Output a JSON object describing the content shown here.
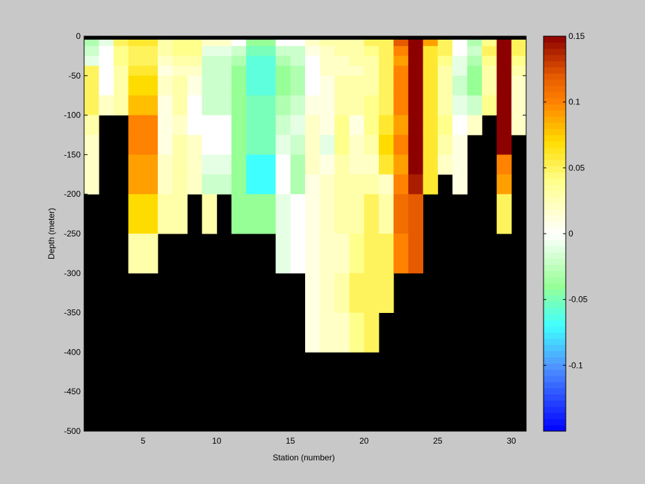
{
  "chart_data": {
    "type": "heatmap",
    "title": "",
    "xlabel": "Station (number)",
    "ylabel": "Depth (meter)",
    "xlim": [
      1,
      31
    ],
    "ylim": [
      -500,
      0
    ],
    "xticks": [
      5,
      10,
      15,
      20,
      25,
      30
    ],
    "yticks": [
      0,
      -50,
      -100,
      -150,
      -200,
      -250,
      -300,
      -350,
      -400,
      -450,
      -500
    ],
    "colorbar": {
      "range": [
        -0.15,
        0.15
      ],
      "ticks": [
        0.15,
        0.1,
        0.05,
        0,
        -0.05,
        -0.1
      ],
      "colormap": "jet-like (blue-cyan-green-white-yellow-orange-darkred)"
    },
    "background_mask_color": "#000000",
    "grid": false,
    "stations": [
      1,
      2,
      3,
      4,
      5,
      6,
      7,
      8,
      9,
      10,
      11,
      12,
      13,
      14,
      15,
      16,
      17,
      18,
      19,
      20,
      21,
      22,
      23,
      24,
      25,
      26,
      27,
      28,
      29,
      30
    ],
    "depth_bins_top_m": [
      0,
      -12.5,
      -25,
      -37.5,
      -50,
      -75,
      -100,
      -125,
      -150,
      -175,
      -200,
      -250,
      -300,
      -350,
      -400
    ],
    "depth_bins_bottom_m": [
      -12.5,
      -25,
      -37.5,
      -50,
      -75,
      -100,
      -125,
      -150,
      -175,
      -200,
      -250,
      -300,
      -350,
      -400,
      -500
    ],
    "values_by_station": [
      [
        -0.03,
        -0.02,
        -0.01,
        0.05,
        0.05,
        0.05,
        0.03,
        0.02,
        0.02,
        0.02,
        null,
        null,
        null,
        null,
        null
      ],
      [
        -0.01,
        0.0,
        0.0,
        0.0,
        0.0,
        0.02,
        null,
        null,
        null,
        null,
        null,
        null,
        null,
        null,
        null
      ],
      [
        0.05,
        0.04,
        0.04,
        0.03,
        0.03,
        0.03,
        null,
        null,
        null,
        null,
        null,
        null,
        null,
        null,
        null
      ],
      [
        0.06,
        0.05,
        0.05,
        0.06,
        0.07,
        0.08,
        0.1,
        0.1,
        0.09,
        0.09,
        0.07,
        0.03,
        null,
        null,
        null
      ],
      [
        0.06,
        0.05,
        0.05,
        0.06,
        0.07,
        0.08,
        0.1,
        0.1,
        0.09,
        0.09,
        0.07,
        0.03,
        null,
        null,
        null
      ],
      [
        0.03,
        0.03,
        0.02,
        0.01,
        0.02,
        0.01,
        0.01,
        0.01,
        0.02,
        0.02,
        0.03,
        null,
        null,
        null,
        null
      ],
      [
        0.04,
        0.04,
        0.03,
        0.02,
        0.03,
        0.03,
        0.02,
        0.03,
        0.03,
        0.03,
        0.03,
        null,
        null,
        null,
        null
      ],
      [
        0.04,
        0.04,
        0.03,
        0.02,
        0.01,
        0.0,
        0.0,
        0.02,
        0.02,
        0.02,
        null,
        null,
        null,
        null,
        null
      ],
      [
        0.02,
        -0.01,
        -0.02,
        -0.02,
        -0.02,
        -0.02,
        0.0,
        0.0,
        -0.01,
        -0.02,
        0.03,
        null,
        null,
        null,
        null
      ],
      [
        0.02,
        -0.01,
        -0.02,
        -0.02,
        -0.02,
        -0.02,
        0.0,
        0.0,
        -0.01,
        -0.02,
        null,
        null,
        null,
        null,
        null
      ],
      [
        0.0,
        -0.02,
        -0.03,
        -0.04,
        -0.04,
        -0.04,
        -0.04,
        -0.04,
        -0.04,
        -0.04,
        -0.04,
        null,
        null,
        null,
        null
      ],
      [
        -0.04,
        -0.05,
        -0.06,
        -0.06,
        -0.06,
        -0.05,
        -0.05,
        -0.05,
        -0.07,
        -0.07,
        -0.04,
        null,
        null,
        null,
        null
      ],
      [
        -0.04,
        -0.05,
        -0.06,
        -0.06,
        -0.06,
        -0.05,
        -0.05,
        -0.05,
        -0.07,
        -0.07,
        -0.04,
        null,
        null,
        null,
        null
      ],
      [
        0.0,
        -0.02,
        -0.03,
        -0.04,
        -0.04,
        -0.03,
        -0.02,
        -0.01,
        0.0,
        0.0,
        -0.01,
        -0.01,
        null,
        null,
        null
      ],
      [
        0.0,
        -0.02,
        -0.02,
        -0.03,
        -0.03,
        -0.02,
        -0.01,
        -0.02,
        -0.03,
        -0.03,
        0.0,
        0.0,
        null,
        null,
        null
      ],
      [
        0.02,
        0.01,
        0.0,
        0.0,
        0.0,
        0.01,
        0.02,
        0.02,
        0.02,
        0.01,
        0.01,
        0.01,
        0.01,
        0.01,
        null
      ],
      [
        0.03,
        0.02,
        0.02,
        0.02,
        0.01,
        0.01,
        0.01,
        -0.01,
        0.01,
        0.02,
        0.02,
        0.02,
        0.02,
        0.02,
        null
      ],
      [
        0.03,
        0.03,
        0.02,
        0.02,
        0.03,
        0.03,
        0.04,
        0.04,
        0.03,
        0.03,
        0.03,
        0.02,
        0.03,
        0.02,
        null
      ],
      [
        0.03,
        0.03,
        0.03,
        0.02,
        0.03,
        0.03,
        0.01,
        0.02,
        0.02,
        0.03,
        0.03,
        0.04,
        0.05,
        0.04,
        null
      ],
      [
        0.05,
        0.04,
        0.03,
        0.03,
        0.03,
        0.04,
        0.04,
        0.03,
        0.02,
        0.03,
        0.05,
        0.05,
        0.05,
        0.05,
        null
      ],
      [
        0.05,
        0.05,
        0.05,
        0.05,
        0.05,
        0.05,
        0.06,
        0.07,
        0.06,
        0.02,
        0.03,
        0.05,
        0.05,
        null,
        null
      ],
      [
        0.12,
        0.1,
        0.09,
        0.1,
        0.1,
        0.1,
        0.09,
        0.1,
        0.09,
        0.1,
        0.11,
        0.1,
        null,
        null,
        null
      ],
      [
        0.15,
        0.15,
        0.15,
        0.15,
        0.15,
        0.15,
        0.15,
        0.15,
        0.15,
        0.14,
        0.12,
        0.12,
        null,
        null,
        null
      ],
      [
        0.09,
        0.06,
        0.06,
        0.06,
        0.06,
        0.06,
        0.06,
        0.06,
        0.06,
        0.06,
        null,
        null,
        null,
        null,
        null
      ],
      [
        0.05,
        0.05,
        0.04,
        0.03,
        0.03,
        0.03,
        0.04,
        0.03,
        0.02,
        null,
        null,
        null,
        null,
        null,
        null
      ],
      [
        0.0,
        0.0,
        -0.01,
        -0.01,
        -0.02,
        -0.01,
        0.0,
        0.01,
        0.01,
        0.01,
        null,
        null,
        null,
        null,
        null
      ],
      [
        -0.03,
        -0.02,
        -0.03,
        -0.04,
        -0.04,
        -0.02,
        0.02,
        null,
        null,
        null,
        null,
        null,
        null,
        null,
        null
      ],
      [
        0.04,
        0.05,
        0.04,
        0.03,
        0.03,
        0.04,
        null,
        null,
        null,
        null,
        null,
        null,
        null,
        null,
        null
      ],
      [
        0.15,
        0.15,
        0.15,
        0.15,
        0.15,
        0.15,
        0.15,
        0.15,
        0.1,
        0.09,
        0.05,
        null,
        null,
        null,
        null
      ],
      [
        0.05,
        0.05,
        0.04,
        0.03,
        0.02,
        0.02,
        0.02,
        null,
        null,
        null,
        null,
        null,
        null,
        null,
        null
      ]
    ]
  }
}
